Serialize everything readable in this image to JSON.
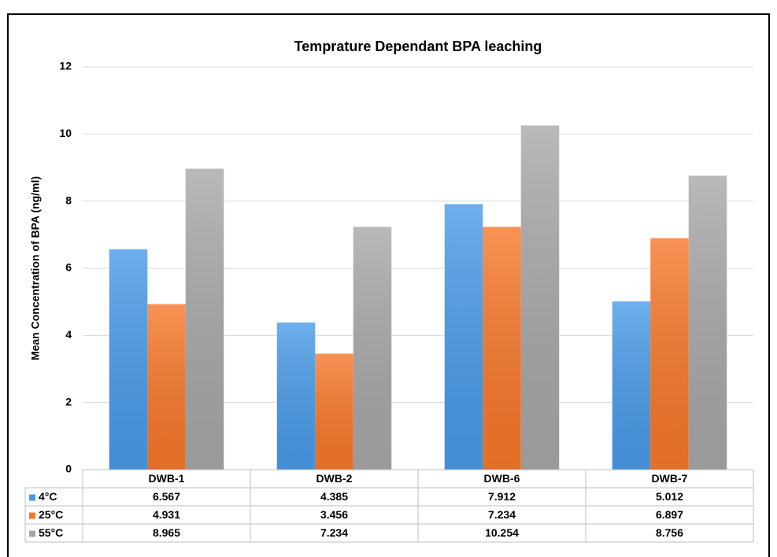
{
  "chart_data": {
    "type": "bar",
    "title": "Temprature Dependant BPA leaching",
    "y_label": "Mean Concentration of BPA (ng/ml)",
    "categories": [
      "DWB-1",
      "DWB-2",
      "DWB-6",
      "DWB-7"
    ],
    "series": [
      {
        "name": "4°C",
        "color": "#4a9be8",
        "values": [
          6.567,
          4.385,
          7.912,
          5.012
        ]
      },
      {
        "name": "25°C",
        "color": "#f7782b",
        "values": [
          4.931,
          3.456,
          7.234,
          6.897
        ]
      },
      {
        "name": "55°C",
        "color": "#a8a8a8",
        "values": [
          8.965,
          7.234,
          10.254,
          8.756
        ]
      }
    ],
    "ylim": [
      0,
      12
    ],
    "yticks": [
      0,
      2,
      4,
      6,
      8,
      10,
      12
    ],
    "grid": true
  }
}
